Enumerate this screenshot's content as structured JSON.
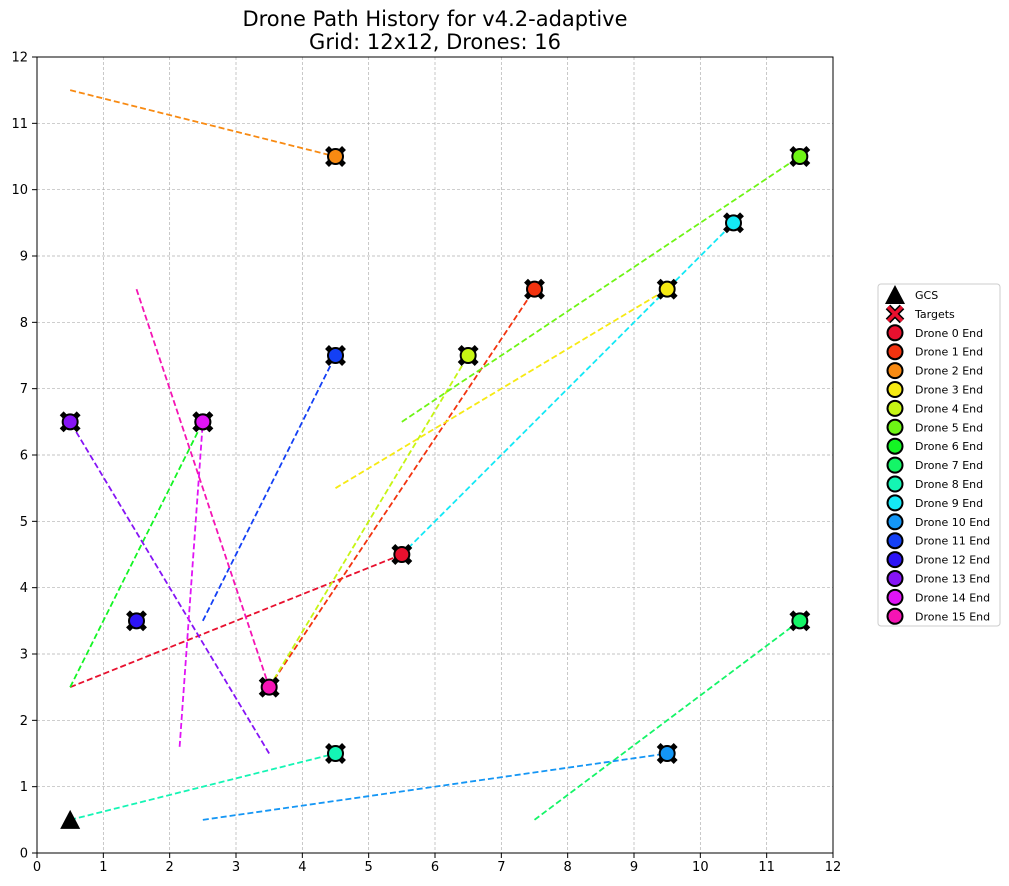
{
  "chart_data": {
    "type": "scatter",
    "title": "Drone Path History for v4.2-adaptive",
    "subtitle": "Grid: 12x12, Drones: 16",
    "xlim": [
      0,
      12
    ],
    "ylim": [
      0,
      12
    ],
    "xticks": [
      "0",
      "1",
      "2",
      "3",
      "4",
      "5",
      "6",
      "7",
      "8",
      "9",
      "10",
      "11",
      "12"
    ],
    "yticks": [
      "0",
      "1",
      "2",
      "3",
      "4",
      "5",
      "6",
      "7",
      "8",
      "9",
      "10",
      "11",
      "12"
    ],
    "grid": true,
    "legend_position": "right",
    "gcs": {
      "label": "GCS",
      "x": 0.5,
      "y": 0.5
    },
    "targets_label": "Targets",
    "drones": [
      {
        "name": "Drone 0 End",
        "color": "#e8102e",
        "start": [
          0.5,
          2.5
        ],
        "end": [
          5.5,
          4.5
        ]
      },
      {
        "name": "Drone 1 End",
        "color": "#f2330f",
        "start": [
          3.5,
          2.5
        ],
        "end": [
          7.5,
          8.5
        ]
      },
      {
        "name": "Drone 2 End",
        "color": "#f88a12",
        "start": [
          0.5,
          11.5
        ],
        "end": [
          4.5,
          10.5
        ]
      },
      {
        "name": "Drone 3 End",
        "color": "#f6ea13",
        "start": [
          4.5,
          5.5
        ],
        "end": [
          9.5,
          8.5
        ]
      },
      {
        "name": "Drone 4 End",
        "color": "#c6f514",
        "start": [
          3.5,
          2.5
        ],
        "end": [
          6.5,
          7.5
        ]
      },
      {
        "name": "Drone 5 End",
        "color": "#6ef515",
        "start": [
          5.5,
          6.5
        ],
        "end": [
          11.5,
          10.5
        ]
      },
      {
        "name": "Drone 6 End",
        "color": "#14f524",
        "start": [
          0.5,
          2.5
        ],
        "end": [
          2.5,
          6.5
        ]
      },
      {
        "name": "Drone 7 End",
        "color": "#14f567",
        "start": [
          7.5,
          0.5
        ],
        "end": [
          11.5,
          3.5
        ]
      },
      {
        "name": "Drone 8 End",
        "color": "#14f5b4",
        "start": [
          0.5,
          0.5
        ],
        "end": [
          4.5,
          1.5
        ]
      },
      {
        "name": "Drone 9 End",
        "color": "#14e8f5",
        "start": [
          5.5,
          4.5
        ],
        "end": [
          10.5,
          9.5
        ]
      },
      {
        "name": "Drone 10 End",
        "color": "#1496f5",
        "start": [
          2.5,
          0.5
        ],
        "end": [
          9.5,
          1.5
        ]
      },
      {
        "name": "Drone 11 End",
        "color": "#1440f5",
        "start": [
          2.5,
          3.5
        ],
        "end": [
          4.5,
          7.5
        ]
      },
      {
        "name": "Drone 12 End",
        "color": "#2d14f5",
        "start": [
          1.5,
          3.5
        ],
        "end": [
          1.5,
          3.5
        ]
      },
      {
        "name": "Drone 13 End",
        "color": "#8614f5",
        "start": [
          3.5,
          1.5
        ],
        "end": [
          0.5,
          6.5
        ]
      },
      {
        "name": "Drone 14 End",
        "color": "#e014f5",
        "start": [
          2.15,
          1.6
        ],
        "end": [
          2.5,
          6.5
        ]
      },
      {
        "name": "Drone 15 End",
        "color": "#f514b4",
        "start": [
          1.5,
          8.5
        ],
        "end": [
          3.5,
          2.5
        ]
      }
    ]
  }
}
